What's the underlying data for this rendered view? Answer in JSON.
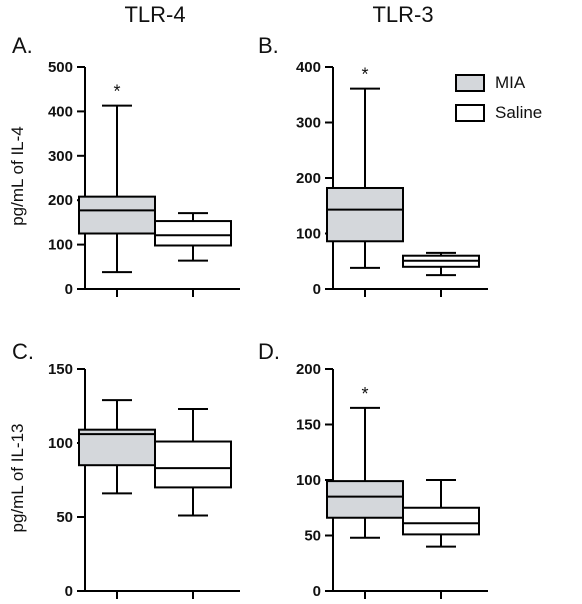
{
  "column_titles": [
    "TLR-4",
    "TLR-3"
  ],
  "y_labels": {
    "top": "pg/mL of IL-4",
    "bottom": "pg/mL of IL-13"
  },
  "legend": [
    {
      "label": "MIA",
      "fill": "#d4d7db"
    },
    {
      "label": "Saline",
      "fill": "#ffffff"
    }
  ],
  "colors": {
    "mia": "#d4d7db",
    "saline": "#ffffff",
    "stroke": "#000000"
  },
  "chart_data": [
    {
      "type": "boxplot",
      "panel": "A.",
      "title": "TLR-4",
      "ylabel": "pg/mL of IL-4",
      "ylim": [
        0,
        500
      ],
      "yticks": [
        0,
        100,
        200,
        300,
        400,
        500
      ],
      "grid": false,
      "series": [
        {
          "name": "MIA",
          "min": 38,
          "q1": 125,
          "median": 177,
          "q3": 208,
          "max": 413,
          "annotation": "*"
        },
        {
          "name": "Saline",
          "min": 64,
          "q1": 98,
          "median": 121,
          "q3": 153,
          "max": 171,
          "annotation": ""
        }
      ]
    },
    {
      "type": "boxplot",
      "panel": "B.",
      "title": "TLR-3",
      "ylabel": "",
      "ylim": [
        0,
        400
      ],
      "yticks": [
        0,
        100,
        200,
        300,
        400
      ],
      "grid": false,
      "series": [
        {
          "name": "MIA",
          "min": 38,
          "q1": 86,
          "median": 143,
          "q3": 182,
          "max": 361,
          "annotation": "*"
        },
        {
          "name": "Saline",
          "min": 25,
          "q1": 40,
          "median": 51,
          "q3": 60,
          "max": 65,
          "annotation": ""
        }
      ]
    },
    {
      "type": "boxplot",
      "panel": "C.",
      "title": "",
      "ylabel": "pg/mL of IL-13",
      "ylim": [
        0,
        150
      ],
      "yticks": [
        0,
        50,
        100,
        150
      ],
      "grid": false,
      "series": [
        {
          "name": "MIA",
          "min": 66,
          "q1": 85,
          "median": 106,
          "q3": 109,
          "max": 129,
          "annotation": ""
        },
        {
          "name": "Saline",
          "min": 51,
          "q1": 70,
          "median": 83,
          "q3": 101,
          "max": 123,
          "annotation": ""
        }
      ]
    },
    {
      "type": "boxplot",
      "panel": "D.",
      "title": "",
      "ylabel": "",
      "ylim": [
        0,
        200
      ],
      "yticks": [
        0,
        50,
        100,
        150,
        200
      ],
      "grid": false,
      "series": [
        {
          "name": "MIA",
          "min": 48,
          "q1": 66,
          "median": 85,
          "q3": 99,
          "max": 165,
          "annotation": "*"
        },
        {
          "name": "Saline",
          "min": 40,
          "q1": 51,
          "median": 61,
          "q3": 75,
          "max": 100,
          "annotation": ""
        }
      ]
    }
  ]
}
